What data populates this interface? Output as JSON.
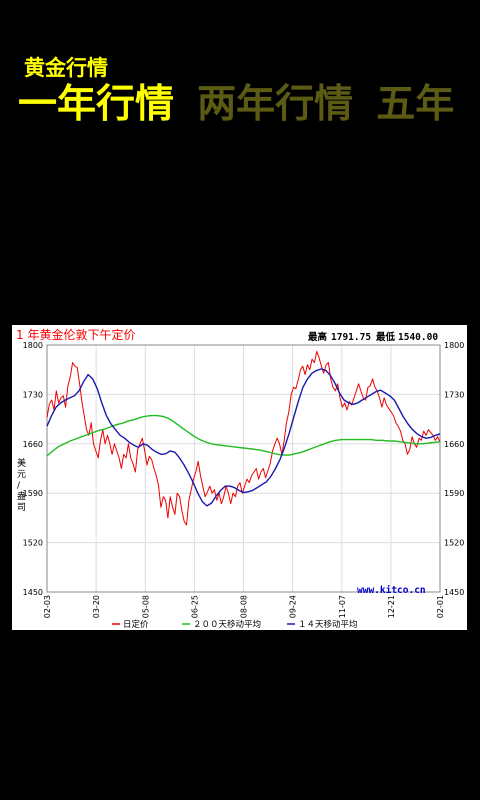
{
  "header": {
    "title": "黄金行情"
  },
  "tabs": [
    {
      "label": "一年行情",
      "active": true
    },
    {
      "label": "两年行情",
      "active": false
    },
    {
      "label": "五年",
      "active": false
    }
  ],
  "colors": {
    "background": "#000000",
    "tab_active": "#ffff00",
    "tab_inactive": "#5b5b13",
    "title": "#ffff00",
    "chart_title": "#ff0000",
    "source_link": "#0000cc"
  },
  "chart_data": {
    "type": "line",
    "title": "1 年黄金伦敦下午定价",
    "stats": {
      "high_label": "最高",
      "high": "1791.75",
      "low_label": "最低",
      "low": "1540.00"
    },
    "ylabel": "美元/盎司",
    "ylim": [
      1450,
      1800
    ],
    "yticks": [
      "1800",
      "1730",
      "1660",
      "1590",
      "1520",
      "1450"
    ],
    "xticks": [
      "02-03",
      "03-20",
      "05-08",
      "06-25",
      "08-08",
      "09-24",
      "11-07",
      "12-21",
      "02-01"
    ],
    "source": "www.kitco.cn",
    "grid": true,
    "legend_position": "bottom",
    "series": [
      {
        "name": "日定价",
        "color": "#ee0000",
        "values": [
          1697,
          1716,
          1722,
          1708,
          1735,
          1718,
          1725,
          1728,
          1712,
          1742,
          1755,
          1775,
          1770,
          1768,
          1745,
          1720,
          1700,
          1680,
          1672,
          1690,
          1660,
          1650,
          1640,
          1665,
          1680,
          1660,
          1672,
          1660,
          1645,
          1660,
          1650,
          1640,
          1625,
          1645,
          1640,
          1660,
          1640,
          1632,
          1620,
          1652,
          1660,
          1668,
          1650,
          1630,
          1642,
          1638,
          1625,
          1615,
          1600,
          1570,
          1585,
          1580,
          1555,
          1585,
          1570,
          1560,
          1590,
          1585,
          1565,
          1550,
          1545,
          1580,
          1595,
          1610,
          1620,
          1635,
          1615,
          1600,
          1585,
          1592,
          1600,
          1590,
          1595,
          1580,
          1590,
          1575,
          1585,
          1600,
          1590,
          1575,
          1590,
          1585,
          1600,
          1605,
          1590,
          1600,
          1610,
          1605,
          1615,
          1620,
          1625,
          1610,
          1620,
          1625,
          1612,
          1622,
          1632,
          1650,
          1660,
          1668,
          1660,
          1645,
          1665,
          1690,
          1705,
          1730,
          1740,
          1738,
          1750,
          1765,
          1770,
          1758,
          1772,
          1765,
          1780,
          1775,
          1791,
          1782,
          1770,
          1760,
          1772,
          1775,
          1752,
          1740,
          1735,
          1745,
          1725,
          1712,
          1718,
          1708,
          1720,
          1715,
          1725,
          1735,
          1745,
          1735,
          1725,
          1722,
          1740,
          1742,
          1752,
          1740,
          1735,
          1725,
          1712,
          1725,
          1715,
          1710,
          1705,
          1700,
          1690,
          1685,
          1678,
          1665,
          1660,
          1645,
          1652,
          1670,
          1660,
          1655,
          1668,
          1665,
          1678,
          1672,
          1680,
          1676,
          1672,
          1665,
          1670,
          1662
        ]
      },
      {
        "name": "２００天移动平均",
        "color": "#22bb22",
        "values": [
          1643,
          1650,
          1656,
          1660,
          1664,
          1667,
          1670,
          1673,
          1676,
          1679,
          1681,
          1684,
          1687,
          1689,
          1692,
          1694,
          1697,
          1699,
          1700,
          1700,
          1699,
          1696,
          1691,
          1685,
          1679,
          1673,
          1668,
          1664,
          1661,
          1659,
          1658,
          1657,
          1656,
          1655,
          1654,
          1653,
          1652,
          1651,
          1649,
          1647,
          1645,
          1644,
          1644,
          1646,
          1648,
          1651,
          1654,
          1657,
          1660,
          1663,
          1665,
          1666,
          1666,
          1666,
          1666,
          1666,
          1666,
          1665,
          1665,
          1664,
          1664,
          1663,
          1662,
          1661,
          1660,
          1660,
          1661,
          1662,
          1663
        ]
      },
      {
        "name": "１４天移动平均",
        "color": "#1a1ab0",
        "values": [
          1685,
          1700,
          1712,
          1718,
          1722,
          1725,
          1728,
          1735,
          1748,
          1758,
          1752,
          1738,
          1718,
          1700,
          1688,
          1680,
          1672,
          1668,
          1662,
          1658,
          1655,
          1660,
          1658,
          1652,
          1648,
          1645,
          1646,
          1650,
          1648,
          1640,
          1630,
          1618,
          1605,
          1590,
          1578,
          1572,
          1576,
          1586,
          1594,
          1600,
          1600,
          1598,
          1594,
          1591,
          1592,
          1594,
          1598,
          1602,
          1606,
          1614,
          1625,
          1638,
          1655,
          1675,
          1698,
          1720,
          1740,
          1752,
          1760,
          1764,
          1766,
          1764,
          1757,
          1746,
          1732,
          1722,
          1718,
          1716,
          1718,
          1722,
          1726,
          1730,
          1734,
          1736,
          1732,
          1728,
          1722,
          1710,
          1698,
          1688,
          1680,
          1674,
          1670,
          1668,
          1669,
          1672,
          1674
        ]
      }
    ]
  }
}
